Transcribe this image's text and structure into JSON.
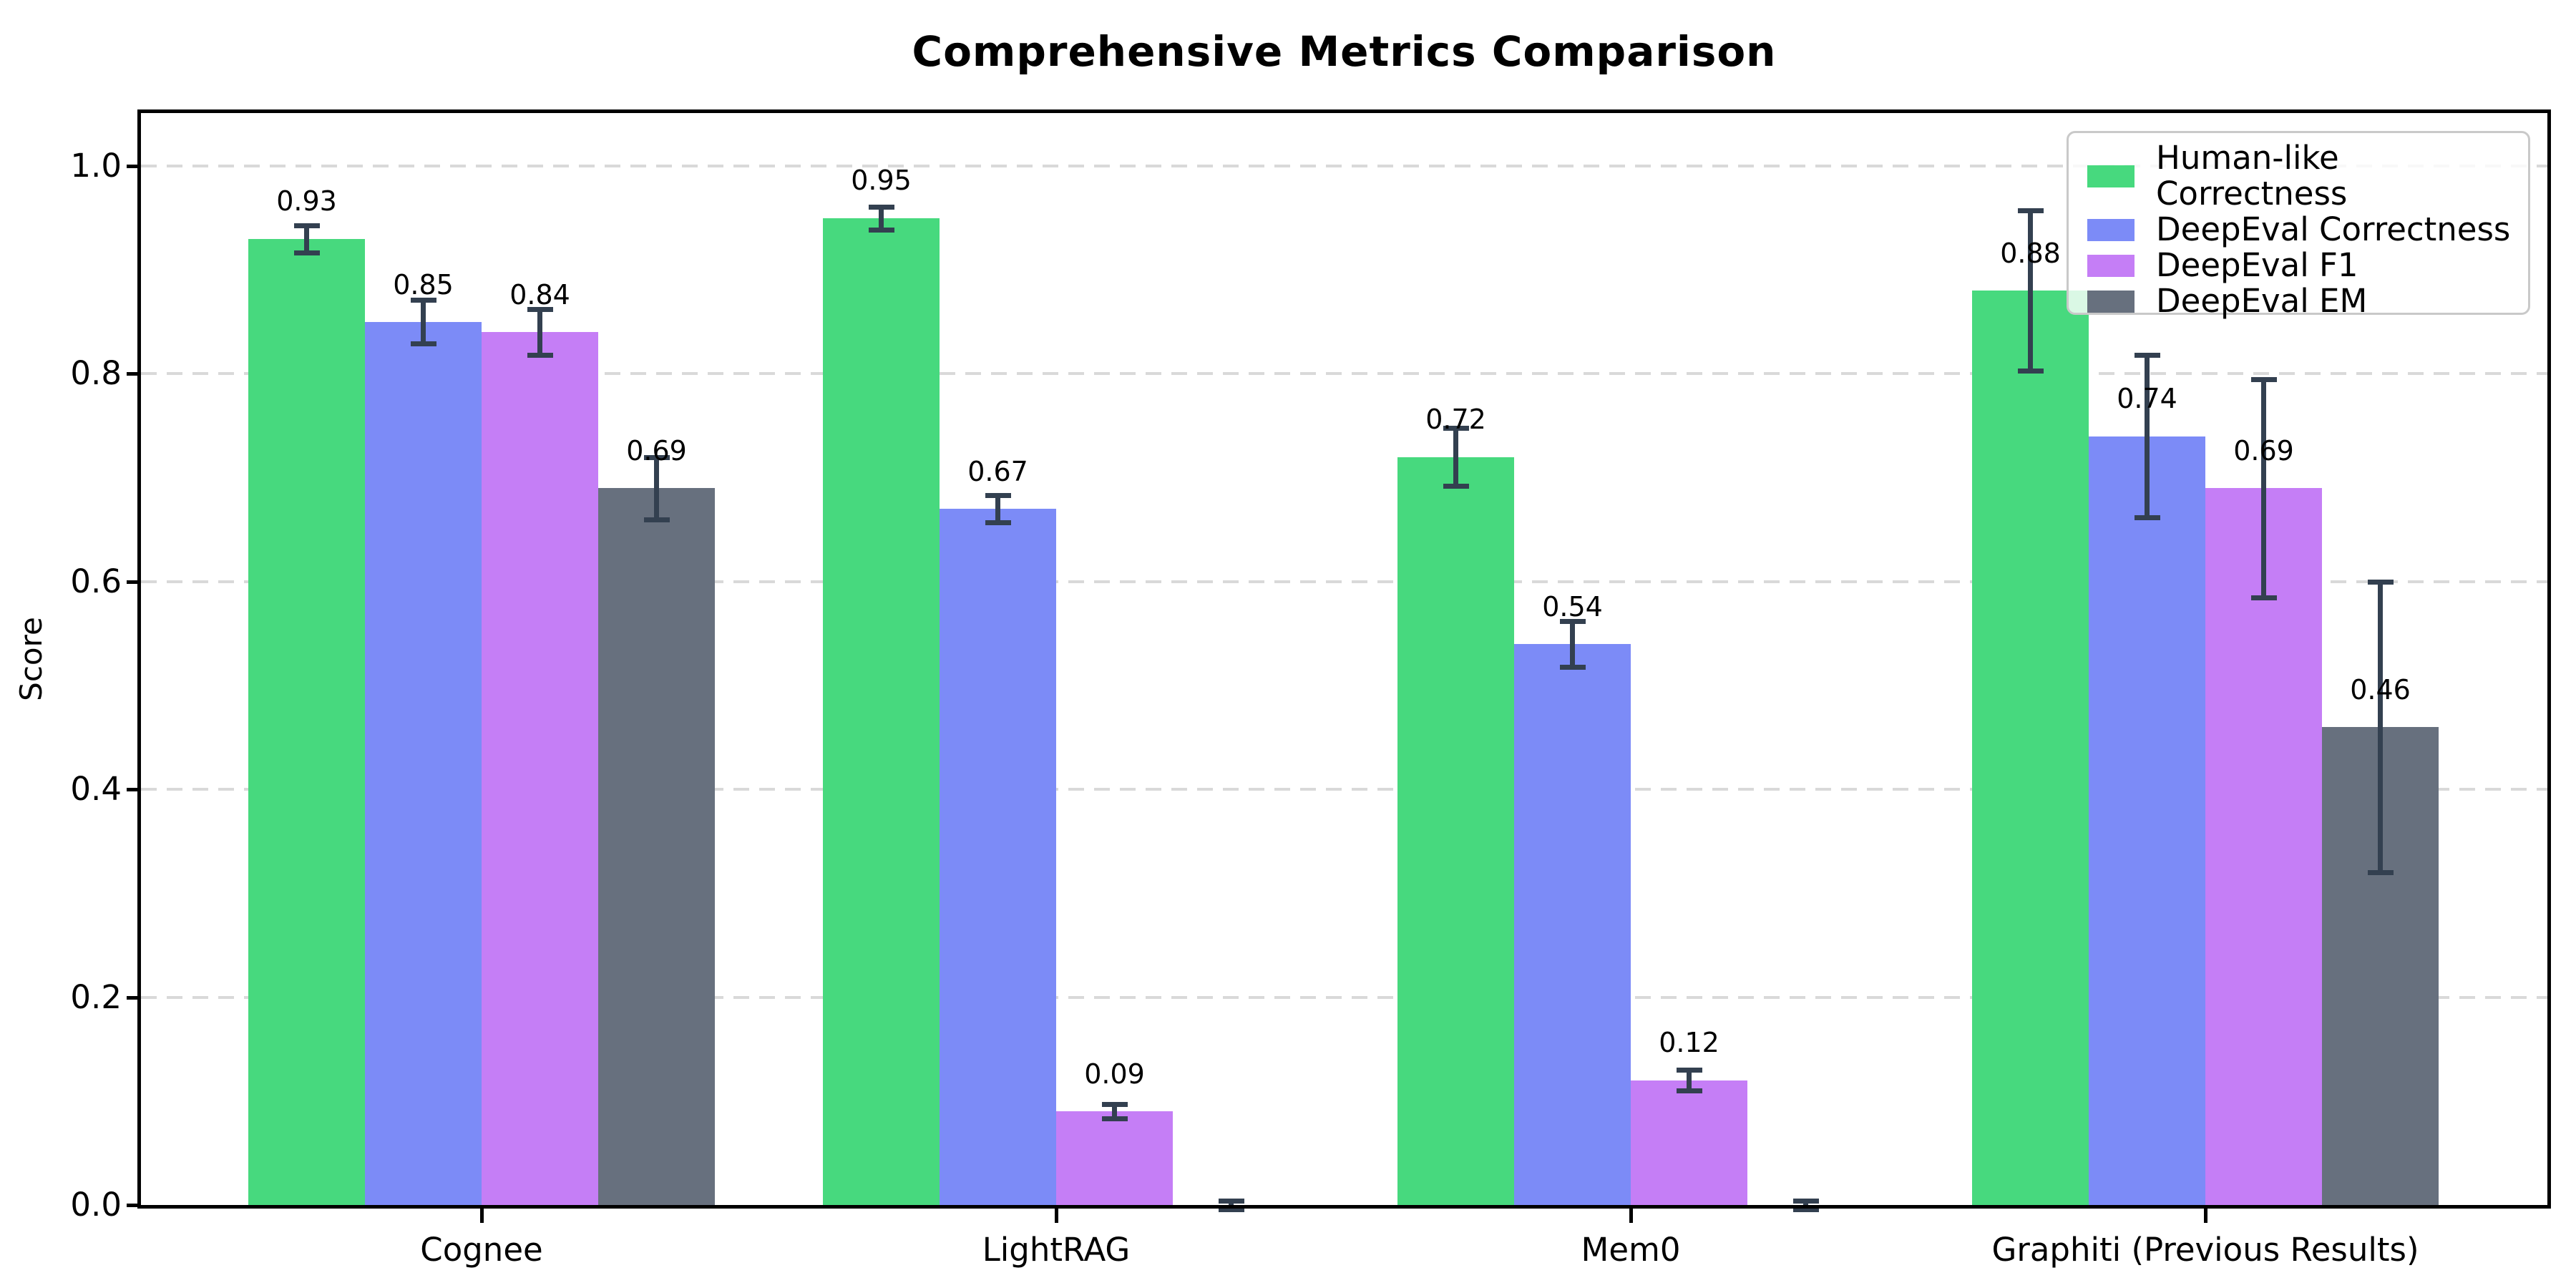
{
  "title": "Comprehensive Metrics Comparison",
  "chart_data": {
    "type": "bar",
    "title": "Comprehensive Metrics Comparison",
    "xlabel": "",
    "ylabel": "Score",
    "ylim": [
      0,
      1.05
    ],
    "yticks": [
      0.0,
      0.2,
      0.4,
      0.6,
      0.8,
      1.0
    ],
    "grid": "horizontal-dashed",
    "legend_position": "upper right",
    "error_color": "#334050",
    "categories": [
      "Cognee",
      "LightRAG",
      "Mem0",
      "Graphiti (Previous Results)"
    ],
    "series": [
      {
        "name": "Human-like Correctness",
        "color": "#47d97e",
        "values": [
          0.93,
          0.95,
          0.72,
          0.88
        ],
        "errors": [
          0.013,
          0.011,
          0.028,
          0.077
        ],
        "value_labels": [
          "0.93",
          "0.95",
          "0.72",
          "0.88"
        ]
      },
      {
        "name": "DeepEval Correctness",
        "color": "#7c8bf7",
        "values": [
          0.85,
          0.67,
          0.54,
          0.74
        ],
        "errors": [
          0.021,
          0.013,
          0.022,
          0.078
        ],
        "value_labels": [
          "0.85",
          "0.67",
          "0.54",
          "0.74"
        ]
      },
      {
        "name": "DeepEval F1",
        "color": "#c57ef6",
        "values": [
          0.84,
          0.09,
          0.12,
          0.69
        ],
        "errors": [
          0.022,
          0.007,
          0.01,
          0.105
        ],
        "value_labels": [
          "0.84",
          "0.09",
          "0.12",
          "0.69"
        ]
      },
      {
        "name": "DeepEval EM",
        "color": "#67707e",
        "values": [
          0.69,
          0.0,
          0.0,
          0.46
        ],
        "errors": [
          0.03,
          0.004,
          0.004,
          0.14
        ],
        "value_labels": [
          "0.69",
          "",
          "",
          "0.46"
        ]
      }
    ]
  }
}
